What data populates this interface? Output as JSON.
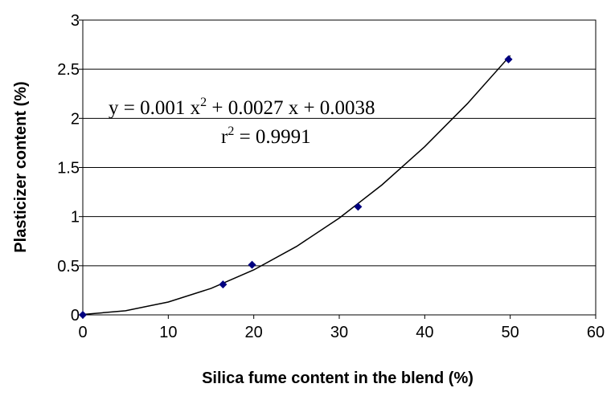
{
  "chart_data": {
    "type": "scatter",
    "x_label": "Silica fume content  in the blend (%)",
    "y_label": "Plasticizer content (%)",
    "x": [
      0,
      16.4,
      19.8,
      32.2,
      49.8
    ],
    "values": [
      0,
      0.31,
      0.51,
      1.1,
      2.6
    ],
    "color": "#000080",
    "trendline": {
      "x": [
        0,
        5,
        10,
        15,
        20,
        25,
        30,
        35,
        40,
        45,
        50
      ],
      "values": [
        0.0038,
        0.0423,
        0.1308,
        0.2693,
        0.4578,
        0.6963,
        0.9848,
        1.3233,
        1.7118,
        2.1503,
        2.6388
      ],
      "color": "#000000"
    },
    "equation": [
      "y = 0.001 x",
      "2",
      " + 0.0027 x + 0.0038"
    ],
    "r_squared": [
      "r",
      "2",
      " = 0.9991"
    ],
    "xlim": [
      0,
      60
    ],
    "xticks": [
      0,
      10,
      20,
      30,
      40,
      50,
      60
    ],
    "ylim": [
      0,
      3
    ],
    "yticks": [
      0,
      0.5,
      1,
      1.5,
      2,
      2.5,
      3
    ],
    "grid": true
  }
}
